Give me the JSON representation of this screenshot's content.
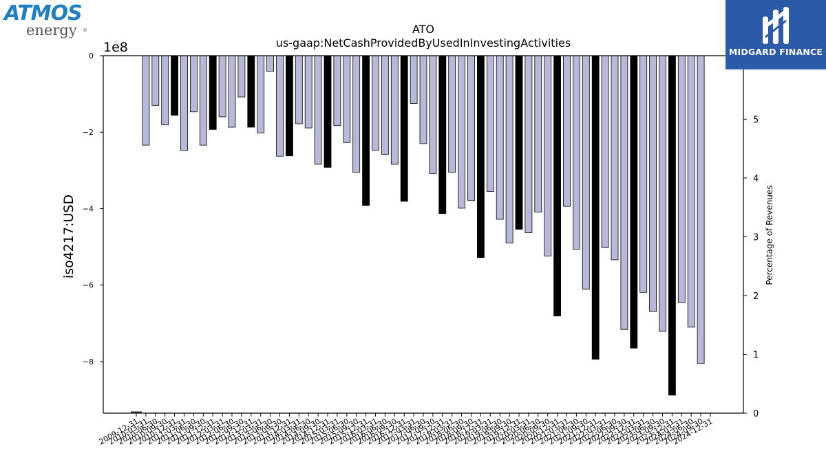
{
  "branding": {
    "left_logo_text": "ATMOS",
    "left_logo_subtext": "energy",
    "left_logo_mark": "®",
    "right_logo_text": "MIDGARD FINANCE"
  },
  "chart_data": {
    "type": "bar",
    "title": "ATO",
    "subtitle": "us-gaap:NetCashProvidedByUsedInInvestingActivities",
    "ylabel": "iso4217:USD",
    "y2label": "Percentage of Revenues",
    "offset_label": "1e8",
    "ylim": [
      -9.35,
      0
    ],
    "y2lim": [
      0,
      6.08
    ],
    "yticks": [
      0,
      -2,
      -4,
      -6,
      -8
    ],
    "yticklabels": [
      "0",
      "−2",
      "−4",
      "−6",
      "−8"
    ],
    "y2ticks": [
      0,
      1,
      2,
      3,
      4,
      5
    ],
    "y2ticklabels": [
      "0",
      "1",
      "2",
      "3",
      "4",
      "5"
    ],
    "grid": false,
    "colors": {
      "quarter": "#b8b8d8",
      "annual": "#000000",
      "edge": "#000000"
    },
    "categories": [
      "2009-12-31",
      "2010-03-31",
      "2010-06-30",
      "2010-09-30",
      "2010-12-31",
      "2011-03-31",
      "2011-06-30",
      "2011-09-30",
      "2011-12-31",
      "2012-03-31",
      "2012-06-30",
      "2012-09-30",
      "2012-12-31",
      "2013-03-31",
      "2013-06-30",
      "2013-09-30",
      "2013-12-31",
      "2014-03-31",
      "2014-06-30",
      "2014-09-30",
      "2014-12-31",
      "2015-03-31",
      "2015-06-30",
      "2015-09-30",
      "2015-12-31",
      "2016-03-31",
      "2016-06-30",
      "2016-09-30",
      "2016-12-31",
      "2017-03-31",
      "2017-06-30",
      "2017-09-30",
      "2017-12-31",
      "2018-03-31",
      "2018-06-30",
      "2018-09-30",
      "2018-12-31",
      "2019-03-31",
      "2019-06-30",
      "2019-09-30",
      "2019-12-31",
      "2020-03-31",
      "2020-06-30",
      "2020-09-30",
      "2020-12-31",
      "2021-03-31",
      "2021-06-30",
      "2021-09-30",
      "2021-12-31",
      "2022-03-31",
      "2022-06-30",
      "2022-09-30",
      "2022-12-31",
      "2023-03-31",
      "2023-06-30",
      "2023-09-30",
      "2023-12-31",
      "2024-03-31",
      "2024-06-30",
      "2024-09-30",
      "2024-12-31"
    ],
    "visible_xticklabels": [
      "2009-12-31",
      "2010-03-31",
      "2010-06-30",
      "2010-09-30",
      "2010-12-31",
      "2011-03-31",
      "2011-06-30",
      "2011-09-30",
      "2011-12-31",
      "2012-03-31",
      "2012-06-30",
      "2012-09-30",
      "2012-12-31",
      "2013-03-31",
      "2013-06-30",
      "2013-09-30",
      "2013-12-31",
      "2014-03-31",
      "2014-06-30",
      "2014-09-30",
      "2014-12-31",
      "2015-03-31",
      "2015-06-30",
      "2015-09-30",
      "2015-12-31",
      "2016-03-31",
      "2016-06-30",
      "2016-09-30",
      "2016-12-31",
      "2017-03-31",
      "2017-06-30",
      "2017-09-30",
      "2017-12-31",
      "2018-03-31",
      "2018-06-30",
      "2018-09-30",
      "2018-12-31",
      "2019-03-31",
      "2019-06-30",
      "2019-09-30",
      "2019-12-31",
      "2020-03-31",
      "2020-06-30",
      "2020-09-30",
      "2020-12-31",
      "2021-03-31",
      "2021-06-30",
      "2021-09-30",
      "2021-12-31",
      "2022-03-31",
      "2022-06-30",
      "2022-09-30",
      "2022-12-31",
      "2023-03-31",
      "2023-06-30",
      "2023-09-30",
      "2023-12-31",
      "2024-03-31",
      "2024-06-30",
      "2024-09-30",
      "2024-12-31"
    ],
    "series": [
      {
        "kind": "quarterly",
        "values": [
          null,
          -2.34,
          -1.3,
          -1.81,
          null,
          -2.48,
          -1.47,
          -2.34,
          null,
          -1.6,
          -1.87,
          -1.08,
          null,
          -2.02,
          -0.41,
          -2.63,
          null,
          -1.78,
          -1.89,
          -2.84,
          null,
          -1.83,
          -2.27,
          -3.05,
          null,
          -2.47,
          -2.58,
          -2.84,
          null,
          -1.25,
          -2.3,
          -3.08,
          null,
          -3.05,
          -3.99,
          -3.79,
          null,
          -3.55,
          -4.28,
          -4.9,
          null,
          -4.63,
          -4.09,
          -5.24,
          null,
          -3.94,
          -5.06,
          -6.11,
          null,
          -5.02,
          -5.34,
          -7.16,
          null,
          -6.19,
          -6.69,
          -7.21,
          null,
          -6.46,
          -7.1,
          -8.05,
          null
        ]
      },
      {
        "kind": "annual",
        "values": [
          null,
          null,
          null,
          null,
          -1.56,
          null,
          null,
          null,
          -1.93,
          null,
          null,
          null,
          -1.87,
          null,
          null,
          null,
          -2.62,
          null,
          null,
          null,
          -2.92,
          null,
          null,
          null,
          -3.92,
          null,
          null,
          null,
          -3.81,
          null,
          null,
          null,
          -4.13,
          null,
          null,
          null,
          -5.28,
          null,
          null,
          null,
          -4.54,
          null,
          null,
          null,
          -6.81,
          null,
          null,
          null,
          -7.94,
          null,
          null,
          null,
          -7.65,
          null,
          null,
          null,
          -8.88,
          null,
          null,
          null,
          null
        ]
      }
    ],
    "revenue_pct": [
      0.01,
      null,
      null,
      null,
      null,
      null,
      null,
      null,
      null,
      null,
      null,
      null,
      null,
      null,
      null,
      null,
      null,
      null,
      null,
      null,
      null,
      null,
      null,
      null,
      null,
      null,
      null,
      null,
      null,
      null,
      null,
      null,
      null,
      null,
      null,
      null,
      null,
      null,
      null,
      null,
      null,
      null,
      null,
      null,
      null,
      null,
      null,
      null,
      null,
      null,
      null,
      null,
      null,
      null,
      null,
      null,
      null,
      null,
      null,
      null,
      null
    ]
  }
}
